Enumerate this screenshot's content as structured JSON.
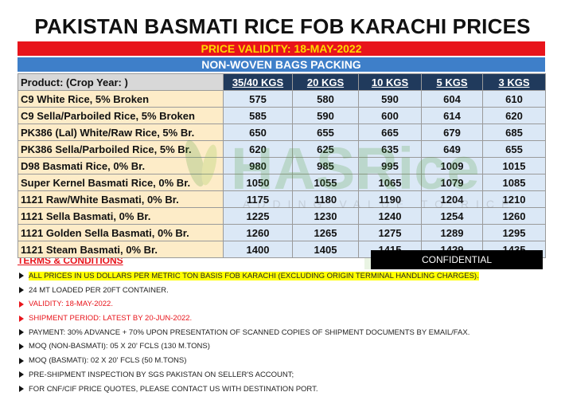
{
  "title": "PAKISTAN BASMATI RICE FOB KARACHI PRICES",
  "validity": "PRICE VALIDITY: 18-MAY-2022",
  "packing": "NON-WOVEN BAGS PACKING",
  "table": {
    "headers": [
      "Product: (Crop Year: )",
      "35/40 KGS",
      "20 KGS",
      "10 KGS",
      "5 KGS",
      "3 KGS"
    ],
    "rows": [
      {
        "name": "C9 White Rice, 5% Broken",
        "prices": [
          "575",
          "580",
          "590",
          "604",
          "610"
        ]
      },
      {
        "name": "C9 Sella/Parboiled Rice, 5% Broken",
        "prices": [
          "585",
          "590",
          "600",
          "614",
          "620"
        ]
      },
      {
        "name": "PK386 (Lal) White/Raw Rice, 5% Br.",
        "prices": [
          "650",
          "655",
          "665",
          "679",
          "685"
        ]
      },
      {
        "name": "PK386 Sella/Parboiled Rice, 5% Br.",
        "prices": [
          "620",
          "625",
          "635",
          "649",
          "655"
        ]
      },
      {
        "name": "D98 Basmati Rice, 0% Br.",
        "prices": [
          "980",
          "985",
          "995",
          "1009",
          "1015"
        ]
      },
      {
        "name": "Super Kernel Basmati Rice, 0% Br.",
        "prices": [
          "1050",
          "1055",
          "1065",
          "1079",
          "1085"
        ]
      },
      {
        "name": "1121 Raw/White Basmati, 0% Br.",
        "prices": [
          "1175",
          "1180",
          "1190",
          "1204",
          "1210"
        ]
      },
      {
        "name": "1121 Sella Basmati, 0% Br.",
        "prices": [
          "1225",
          "1230",
          "1240",
          "1254",
          "1260"
        ]
      },
      {
        "name": "1121 Golden Sella Basmati, 0% Br.",
        "prices": [
          "1260",
          "1265",
          "1275",
          "1289",
          "1295"
        ]
      },
      {
        "name": "1121 Steam Basmati, 0% Br.",
        "prices": [
          "1400",
          "1405",
          "1415",
          "1429",
          "1435"
        ]
      }
    ]
  },
  "watermark": {
    "brand": "HASRice",
    "tagline": "ADDING VALUE TO RICE"
  },
  "confidential": "CONFIDENTIAL",
  "terms": {
    "title": "TERMS & CONDITIONS",
    "items": [
      {
        "text": "ALL PRICES IN US DOLLARS PER METRIC TON BASIS FOB KARACHI (EXCLUDING ORIGIN TERMINAL HANDLING CHARGES).",
        "style": "hl"
      },
      {
        "text": "24 MT LOADED PER 20FT CONTAINER.",
        "style": ""
      },
      {
        "text": "VALIDITY: 18-MAY-2022.",
        "style": "red"
      },
      {
        "text": "SHIPMENT PERIOD: LATEST BY 20-JUN-2022.",
        "style": "red"
      },
      {
        "text": "PAYMENT: 30% ADVANCE + 70% UPON PRESENTATION OF SCANNED COPIES OF SHIPMENT DOCUMENTS BY EMAIL/FAX.",
        "style": ""
      },
      {
        "text": "MOQ (NON-BASMATI): 05 X 20' FCLS (130 M.TONS)",
        "style": ""
      },
      {
        "text": "MOQ (BASMATI): 02 X 20' FCLS (50 M.TONS)",
        "style": ""
      },
      {
        "text": "PRE-SHIPMENT INSPECTION BY SGS PAKISTAN ON SELLER'S ACCOUNT;",
        "style": ""
      },
      {
        "text": "FOR CNF/CIF PRICE QUOTES, PLEASE CONTACT US WITH DESTINATION PORT.",
        "style": ""
      }
    ]
  },
  "colors": {
    "validity_bg": "#e8141b",
    "validity_text": "#ffd800",
    "packing_bg": "#3e7fc9",
    "header_bg": "#203a5c",
    "product_bg": "#fdecc8",
    "price_bg": "#dbe8f6"
  }
}
